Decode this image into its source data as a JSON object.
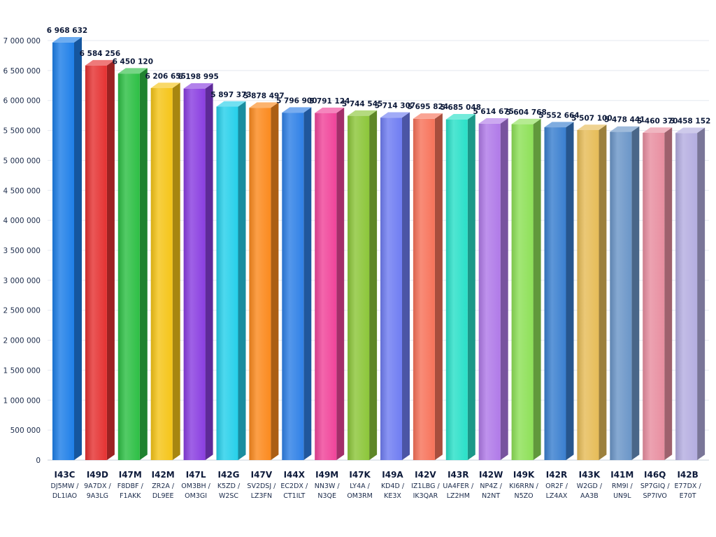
{
  "chart_data": {
    "type": "bar",
    "title": "",
    "xlabel": "",
    "ylabel": "",
    "ylim": [
      0,
      7000000
    ],
    "grid": true,
    "legend": "none",
    "yticks": [
      0,
      500000,
      1000000,
      1500000,
      2000000,
      2500000,
      3000000,
      3500000,
      4000000,
      4500000,
      5000000,
      5500000,
      6000000,
      6500000,
      7000000
    ],
    "ytick_labels": [
      "0",
      "500 000",
      "1 000 000",
      "1 500 000",
      "2 000 000",
      "2 500 000",
      "3 000 000",
      "3 500 000",
      "4 000 000",
      "4 500 000",
      "5 000 000",
      "5 500 000",
      "6 000 000",
      "6 500 000",
      "7 000 000"
    ],
    "bars": [
      {
        "code": "I43C",
        "calls": [
          "DJ5MW /",
          "DL1IAO"
        ],
        "value": 6968632,
        "label": "6 968 632",
        "color": "#1f7fe8"
      },
      {
        "code": "I49D",
        "calls": [
          "9A7DX /",
          "9A3LG"
        ],
        "value": 6584256,
        "label": "6 584 256",
        "color": "#e53232"
      },
      {
        "code": "I47M",
        "calls": [
          "F8DBF /",
          "F1AKK"
        ],
        "value": 6450120,
        "label": "6 450 120",
        "color": "#2dbf45"
      },
      {
        "code": "I42M",
        "calls": [
          "ZR2A /",
          "DL9EE"
        ],
        "value": 6206655,
        "label": "6 206 655",
        "color": "#f5c518"
      },
      {
        "code": "I47L",
        "calls": [
          "OM3BH /",
          "OM3GI"
        ],
        "value": 6198995,
        "label": "6 198 995",
        "color": "#8a3ee0"
      },
      {
        "code": "I42G",
        "calls": [
          "K5ZD /",
          "W2SC"
        ],
        "value": 5897373,
        "label": "5 897 373",
        "color": "#26d0ea"
      },
      {
        "code": "I47V",
        "calls": [
          "SV2DSJ /",
          "LZ3FN"
        ],
        "value": 5878497,
        "label": "5 878 497",
        "color": "#fb8a1e"
      },
      {
        "code": "I44X",
        "calls": [
          "EC2DX /",
          "CT1ILT"
        ],
        "value": 5796900,
        "label": "5 796 900",
        "color": "#2f80e6"
      },
      {
        "code": "I49M",
        "calls": [
          "NN3W /",
          "N3QE"
        ],
        "value": 5791124,
        "label": "5 791 124",
        "color": "#f0449a"
      },
      {
        "code": "I47K",
        "calls": [
          "LY4A /",
          "OM3RM"
        ],
        "value": 5744545,
        "label": "5 744 545",
        "color": "#8cc63a"
      },
      {
        "code": "I49A",
        "calls": [
          "KD4D /",
          "KE3X"
        ],
        "value": 5714307,
        "label": "5 714 307",
        "color": "#6f7df2"
      },
      {
        "code": "I42V",
        "calls": [
          "IZ1LBG /",
          "IK3QAR"
        ],
        "value": 5695824,
        "label": "5 695 824",
        "color": "#f7735a"
      },
      {
        "code": "I43R",
        "calls": [
          "UA4FER /",
          "LZ2HM"
        ],
        "value": 5685048,
        "label": "5 685 048",
        "color": "#29e0c8"
      },
      {
        "code": "I42W",
        "calls": [
          "NP4Z /",
          "N2NT"
        ],
        "value": 5614675,
        "label": "5 614 675",
        "color": "#b07ae8"
      },
      {
        "code": "I49K",
        "calls": [
          "KI6RRN /",
          "N5ZO"
        ],
        "value": 5604768,
        "label": "5 604 768",
        "color": "#8ee058"
      },
      {
        "code": "I42R",
        "calls": [
          "OR2F /",
          "LZ4AX"
        ],
        "value": 5552664,
        "label": "5 552 664",
        "color": "#3a7fcf"
      },
      {
        "code": "I43K",
        "calls": [
          "W2GD /",
          "AA3B"
        ],
        "value": 5507100,
        "label": "5 507 100",
        "color": "#e6bc58"
      },
      {
        "code": "I41M",
        "calls": [
          "RM9I /",
          "UN9L"
        ],
        "value": 5478441,
        "label": "5 478 441",
        "color": "#6b96c8"
      },
      {
        "code": "I46Q",
        "calls": [
          "SP7GIQ /",
          "SP7IVO"
        ],
        "value": 5460370,
        "label": "5 460 370",
        "color": "#e88ea0"
      },
      {
        "code": "I42B",
        "calls": [
          "E77DX /",
          "E70T"
        ],
        "value": 5458152,
        "label": "5 458 152",
        "color": "#b4ade0"
      }
    ]
  }
}
